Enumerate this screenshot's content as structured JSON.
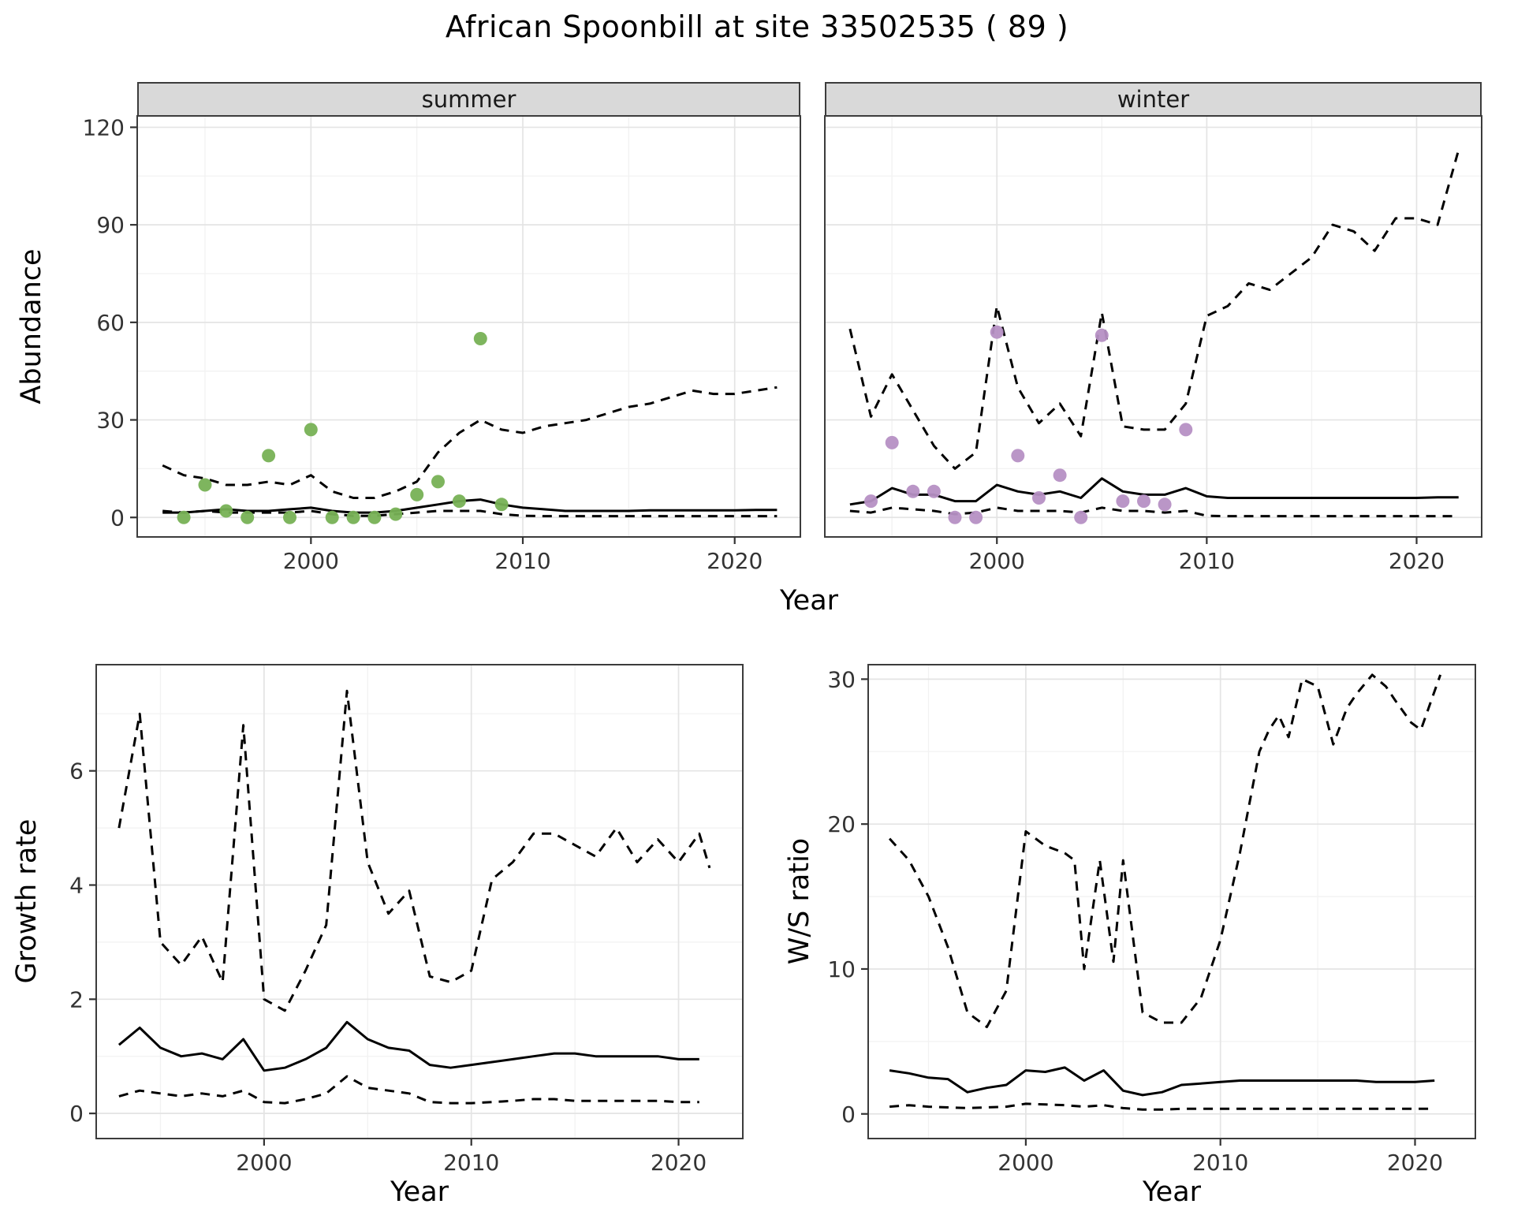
{
  "title": "African Spoonbill at site 33502535 ( 89 )",
  "colors": {
    "line": "#000000",
    "grid_major": "#e4e4e4",
    "grid_minor": "#f2f2f2",
    "strip_bg": "#d9d9d9",
    "summer_points": "#77b155",
    "winter_points": "#b690c4",
    "axis_text": "#333333"
  },
  "chart_data": [
    {
      "id": "abundance_summer",
      "type": "line",
      "facet": "summer",
      "xlabel": "Year",
      "ylabel": "Abundance",
      "xlim": [
        1991.8,
        2023.1
      ],
      "ylim": [
        -6,
        123.5
      ],
      "xticks": [
        2000,
        2010,
        2020
      ],
      "yticks": [
        0,
        30,
        60,
        90,
        120
      ],
      "xticks_minor": [
        1995,
        2005,
        2015
      ],
      "yticks_minor": [
        15,
        45,
        75,
        105
      ],
      "series": [
        {
          "name": "fit_median",
          "style": "solid",
          "x": [
            1993,
            1994,
            1995,
            1996,
            1997,
            1998,
            1999,
            2000,
            2001,
            2002,
            2003,
            2004,
            2005,
            2006,
            2007,
            2008,
            2009,
            2010,
            2011,
            2012,
            2013,
            2014,
            2015,
            2016,
            2017,
            2018,
            2019,
            2020,
            2021,
            2022
          ],
          "y": [
            1.5,
            1.5,
            2,
            2.5,
            2,
            2,
            2.5,
            3,
            2,
            1.5,
            1.5,
            2,
            3,
            4,
            5,
            5.5,
            4,
            3,
            2.5,
            2,
            2,
            2,
            2,
            2.2,
            2.2,
            2.2,
            2.2,
            2.2,
            2.3,
            2.3
          ]
        },
        {
          "name": "upper_interval",
          "style": "dashed",
          "x": [
            1993,
            1994,
            1995,
            1996,
            1997,
            1998,
            1999,
            2000,
            2001,
            2002,
            2003,
            2004,
            2005,
            2006,
            2007,
            2008,
            2009,
            2010,
            2011,
            2012,
            2013,
            2014,
            2015,
            2016,
            2017,
            2018,
            2019,
            2020,
            2021,
            2022
          ],
          "y": [
            16,
            13,
            12,
            10,
            10,
            11,
            10,
            13,
            8,
            6,
            6,
            8,
            11,
            20,
            26,
            30,
            27,
            26,
            28,
            29,
            30,
            32,
            34,
            35,
            37,
            39,
            38,
            38,
            39,
            40
          ]
        },
        {
          "name": "lower_interval",
          "style": "dashed",
          "x": [
            1993,
            1994,
            1995,
            1996,
            1997,
            1998,
            1999,
            2000,
            2001,
            2002,
            2003,
            2004,
            2005,
            2006,
            2007,
            2008,
            2009,
            2010,
            2011,
            2012,
            2013,
            2014,
            2015,
            2016,
            2017,
            2018,
            2019,
            2020,
            2021,
            2022
          ],
          "y": [
            2,
            1.5,
            2,
            1.5,
            1.5,
            1.5,
            1.5,
            2,
            1,
            0.5,
            0.5,
            1,
            1.5,
            2,
            2,
            2,
            1,
            0.5,
            0.4,
            0.4,
            0.4,
            0.4,
            0.4,
            0.4,
            0.4,
            0.4,
            0.4,
            0.4,
            0.4,
            0.4
          ]
        }
      ],
      "points": {
        "name": "observed_summer_counts",
        "color_key": "summer_points",
        "x": [
          1994,
          1995,
          1996,
          1997,
          1998,
          1999,
          2000,
          2001,
          2002,
          2003,
          2004,
          2005,
          2006,
          2007,
          2008,
          2009
        ],
        "y": [
          0,
          10,
          2,
          0,
          19,
          0,
          27,
          0,
          0,
          0,
          1,
          7,
          11,
          5,
          55,
          4
        ]
      }
    },
    {
      "id": "abundance_winter",
      "type": "line",
      "facet": "winter",
      "xlabel": "Year",
      "ylabel": "Abundance",
      "xlim": [
        1991.8,
        2023.1
      ],
      "ylim": [
        -6,
        123.5
      ],
      "xticks": [
        2000,
        2010,
        2020
      ],
      "yticks": [
        0,
        30,
        60,
        90,
        120
      ],
      "xticks_minor": [
        1995,
        2005,
        2015
      ],
      "yticks_minor": [
        15,
        45,
        75,
        105
      ],
      "series": [
        {
          "name": "fit_median",
          "style": "solid",
          "x": [
            1993,
            1994,
            1995,
            1996,
            1997,
            1998,
            1999,
            2000,
            2001,
            2002,
            2003,
            2004,
            2005,
            2006,
            2007,
            2008,
            2009,
            2010,
            2011,
            2012,
            2013,
            2014,
            2015,
            2016,
            2017,
            2018,
            2019,
            2020,
            2021,
            2022
          ],
          "y": [
            4,
            5,
            9,
            7,
            7,
            5,
            5,
            10,
            8,
            7,
            8,
            6,
            12,
            8,
            7,
            7,
            9,
            6.5,
            6,
            6,
            6,
            6,
            6,
            6,
            6,
            6,
            6,
            6,
            6.2,
            6.2
          ]
        },
        {
          "name": "upper_interval",
          "style": "dashed",
          "x": [
            1993,
            1994,
            1995,
            1996,
            1997,
            1998,
            1999,
            2000,
            2001,
            2002,
            2003,
            2004,
            2005,
            2006,
            2007,
            2008,
            2009,
            2010,
            2011,
            2012,
            2013,
            2014,
            2015,
            2016,
            2017,
            2018,
            2019,
            2020,
            2021,
            2022
          ],
          "y": [
            58,
            31,
            44,
            33,
            22,
            15,
            20,
            65,
            40,
            29,
            35,
            25,
            63,
            28,
            27,
            27,
            35,
            62,
            65,
            72,
            70,
            75,
            80,
            90,
            88,
            82,
            92,
            92,
            90,
            113
          ]
        },
        {
          "name": "lower_interval",
          "style": "dashed",
          "x": [
            1993,
            1994,
            1995,
            1996,
            1997,
            1998,
            1999,
            2000,
            2001,
            2002,
            2003,
            2004,
            2005,
            2006,
            2007,
            2008,
            2009,
            2010,
            2011,
            2012,
            2013,
            2014,
            2015,
            2016,
            2017,
            2018,
            2019,
            2020,
            2021,
            2022
          ],
          "y": [
            2,
            1.5,
            3,
            2.5,
            2,
            1,
            1.5,
            3,
            2,
            2,
            2,
            1.5,
            3,
            2,
            2,
            1.5,
            2,
            0.5,
            0.4,
            0.4,
            0.4,
            0.4,
            0.4,
            0.4,
            0.4,
            0.4,
            0.4,
            0.4,
            0.4,
            0.4
          ]
        }
      ],
      "points": {
        "name": "observed_winter_counts",
        "color_key": "winter_points",
        "x": [
          1994,
          1995,
          1996,
          1997,
          1998,
          1999,
          2000,
          2001,
          2002,
          2003,
          2004,
          2005,
          2006,
          2007,
          2008,
          2009
        ],
        "y": [
          5,
          23,
          8,
          8,
          0,
          0,
          57,
          19,
          6,
          13,
          0,
          56,
          5,
          5,
          4,
          27
        ]
      }
    },
    {
      "id": "growth_rate",
      "type": "line",
      "facet": "",
      "xlabel": "Year",
      "ylabel": "Growth rate",
      "xlim": [
        1991.9,
        2023.1
      ],
      "ylim": [
        -0.44,
        7.86
      ],
      "xticks": [
        2000,
        2010,
        2020
      ],
      "yticks": [
        0,
        2,
        4,
        6
      ],
      "xticks_minor": [
        1995,
        2005,
        2015
      ],
      "yticks_minor": [
        1,
        3,
        5,
        7
      ],
      "series": [
        {
          "name": "fit_median",
          "style": "solid",
          "x": [
            1993,
            1994,
            1995,
            1996,
            1997,
            1998,
            1999,
            2000,
            2001,
            2002,
            2003,
            2004,
            2005,
            2006,
            2007,
            2008,
            2009,
            2010,
            2011,
            2012,
            2013,
            2014,
            2015,
            2016,
            2017,
            2018,
            2019,
            2020,
            2021
          ],
          "y": [
            1.2,
            1.5,
            1.15,
            1.0,
            1.05,
            0.95,
            1.3,
            0.75,
            0.8,
            0.95,
            1.15,
            1.6,
            1.3,
            1.15,
            1.1,
            0.85,
            0.8,
            0.85,
            0.9,
            0.95,
            1.0,
            1.05,
            1.05,
            1.0,
            1.0,
            1.0,
            1.0,
            0.95,
            0.95
          ]
        },
        {
          "name": "upper_interval",
          "style": "dashed",
          "x": [
            1993,
            1994,
            1995,
            1996,
            1997,
            1998,
            1999,
            2000,
            2001,
            2002,
            2003,
            2004,
            2005,
            2006,
            2007,
            2008,
            2009,
            2010,
            2011,
            2012,
            2013,
            2014,
            2015,
            2016,
            2017,
            2018,
            2019,
            2020,
            2021,
            2021.5
          ],
          "y": [
            5.0,
            7.0,
            3.0,
            2.6,
            3.1,
            2.3,
            6.8,
            2.0,
            1.8,
            2.5,
            3.3,
            7.4,
            4.4,
            3.5,
            3.9,
            2.4,
            2.3,
            2.5,
            4.1,
            4.4,
            4.9,
            4.9,
            4.7,
            4.5,
            5.0,
            4.4,
            4.8,
            4.4,
            4.9,
            4.3
          ]
        },
        {
          "name": "lower_interval",
          "style": "dashed",
          "x": [
            1993,
            1994,
            1995,
            1996,
            1997,
            1998,
            1999,
            2000,
            2001,
            2002,
            2003,
            2004,
            2005,
            2006,
            2007,
            2008,
            2009,
            2010,
            2011,
            2012,
            2013,
            2014,
            2015,
            2016,
            2017,
            2018,
            2019,
            2020,
            2021
          ],
          "y": [
            0.3,
            0.4,
            0.35,
            0.3,
            0.35,
            0.3,
            0.4,
            0.2,
            0.18,
            0.25,
            0.35,
            0.65,
            0.45,
            0.4,
            0.35,
            0.2,
            0.18,
            0.18,
            0.2,
            0.22,
            0.25,
            0.25,
            0.22,
            0.22,
            0.22,
            0.22,
            0.22,
            0.2,
            0.2
          ]
        }
      ]
    },
    {
      "id": "ws_ratio",
      "type": "line",
      "facet": "",
      "xlabel": "Year",
      "ylabel": "W/S ratio",
      "xlim": [
        1991.9,
        2023.1
      ],
      "ylim": [
        -1.7,
        31
      ],
      "xticks": [
        2000,
        2010,
        2020
      ],
      "yticks": [
        0,
        10,
        20,
        30
      ],
      "xticks_minor": [
        1995,
        2005,
        2015
      ],
      "yticks_minor": [
        5,
        15,
        25
      ],
      "series": [
        {
          "name": "fit_median",
          "style": "solid",
          "x": [
            1993,
            1994,
            1995,
            1996,
            1997,
            1998,
            1999,
            2000,
            2001,
            2002,
            2003,
            2004,
            2005,
            2006,
            2007,
            2008,
            2009,
            2010,
            2011,
            2012,
            2013,
            2014,
            2015,
            2016,
            2017,
            2018,
            2019,
            2020,
            2021
          ],
          "y": [
            3.0,
            2.8,
            2.5,
            2.4,
            1.5,
            1.8,
            2.0,
            3.0,
            2.9,
            3.2,
            2.3,
            3.0,
            1.6,
            1.3,
            1.5,
            2.0,
            2.1,
            2.2,
            2.3,
            2.3,
            2.3,
            2.3,
            2.3,
            2.3,
            2.3,
            2.2,
            2.2,
            2.2,
            2.3
          ]
        },
        {
          "name": "upper_interval",
          "style": "dashed",
          "x": [
            1993,
            1994,
            1995,
            1996,
            1997,
            1998,
            1999,
            2000,
            2001,
            2002,
            2002.5,
            2003,
            2003.8,
            2004.5,
            2005,
            2006,
            2007,
            2008,
            2009,
            2010,
            2011,
            2012,
            2012.5,
            2013,
            2013.5,
            2014.2,
            2015,
            2015.8,
            2016.5,
            2017,
            2017.8,
            2018.5,
            2019,
            2019.8,
            2020.3,
            2021.3
          ],
          "y": [
            19,
            17.5,
            15,
            11.5,
            7,
            6,
            8.5,
            19.5,
            18.5,
            18,
            17.5,
            10,
            17.5,
            10.5,
            17.5,
            7,
            6.3,
            6.3,
            8,
            12,
            18,
            25,
            26.5,
            27.5,
            26,
            30,
            29.5,
            25.5,
            28,
            29,
            30.3,
            29.5,
            28.5,
            27,
            26.5,
            30.3
          ]
        },
        {
          "name": "lower_interval",
          "style": "dashed",
          "x": [
            1993,
            1994,
            1995,
            1996,
            1997,
            1998,
            1999,
            2000,
            2001,
            2002,
            2003,
            2004,
            2005,
            2006,
            2007,
            2008,
            2009,
            2010,
            2011,
            2012,
            2013,
            2014,
            2015,
            2016,
            2017,
            2018,
            2019,
            2020,
            2021
          ],
          "y": [
            0.5,
            0.6,
            0.5,
            0.45,
            0.4,
            0.45,
            0.5,
            0.7,
            0.65,
            0.6,
            0.5,
            0.6,
            0.4,
            0.3,
            0.3,
            0.35,
            0.35,
            0.35,
            0.35,
            0.35,
            0.35,
            0.35,
            0.35,
            0.35,
            0.35,
            0.35,
            0.35,
            0.35,
            0.35
          ]
        }
      ]
    }
  ]
}
